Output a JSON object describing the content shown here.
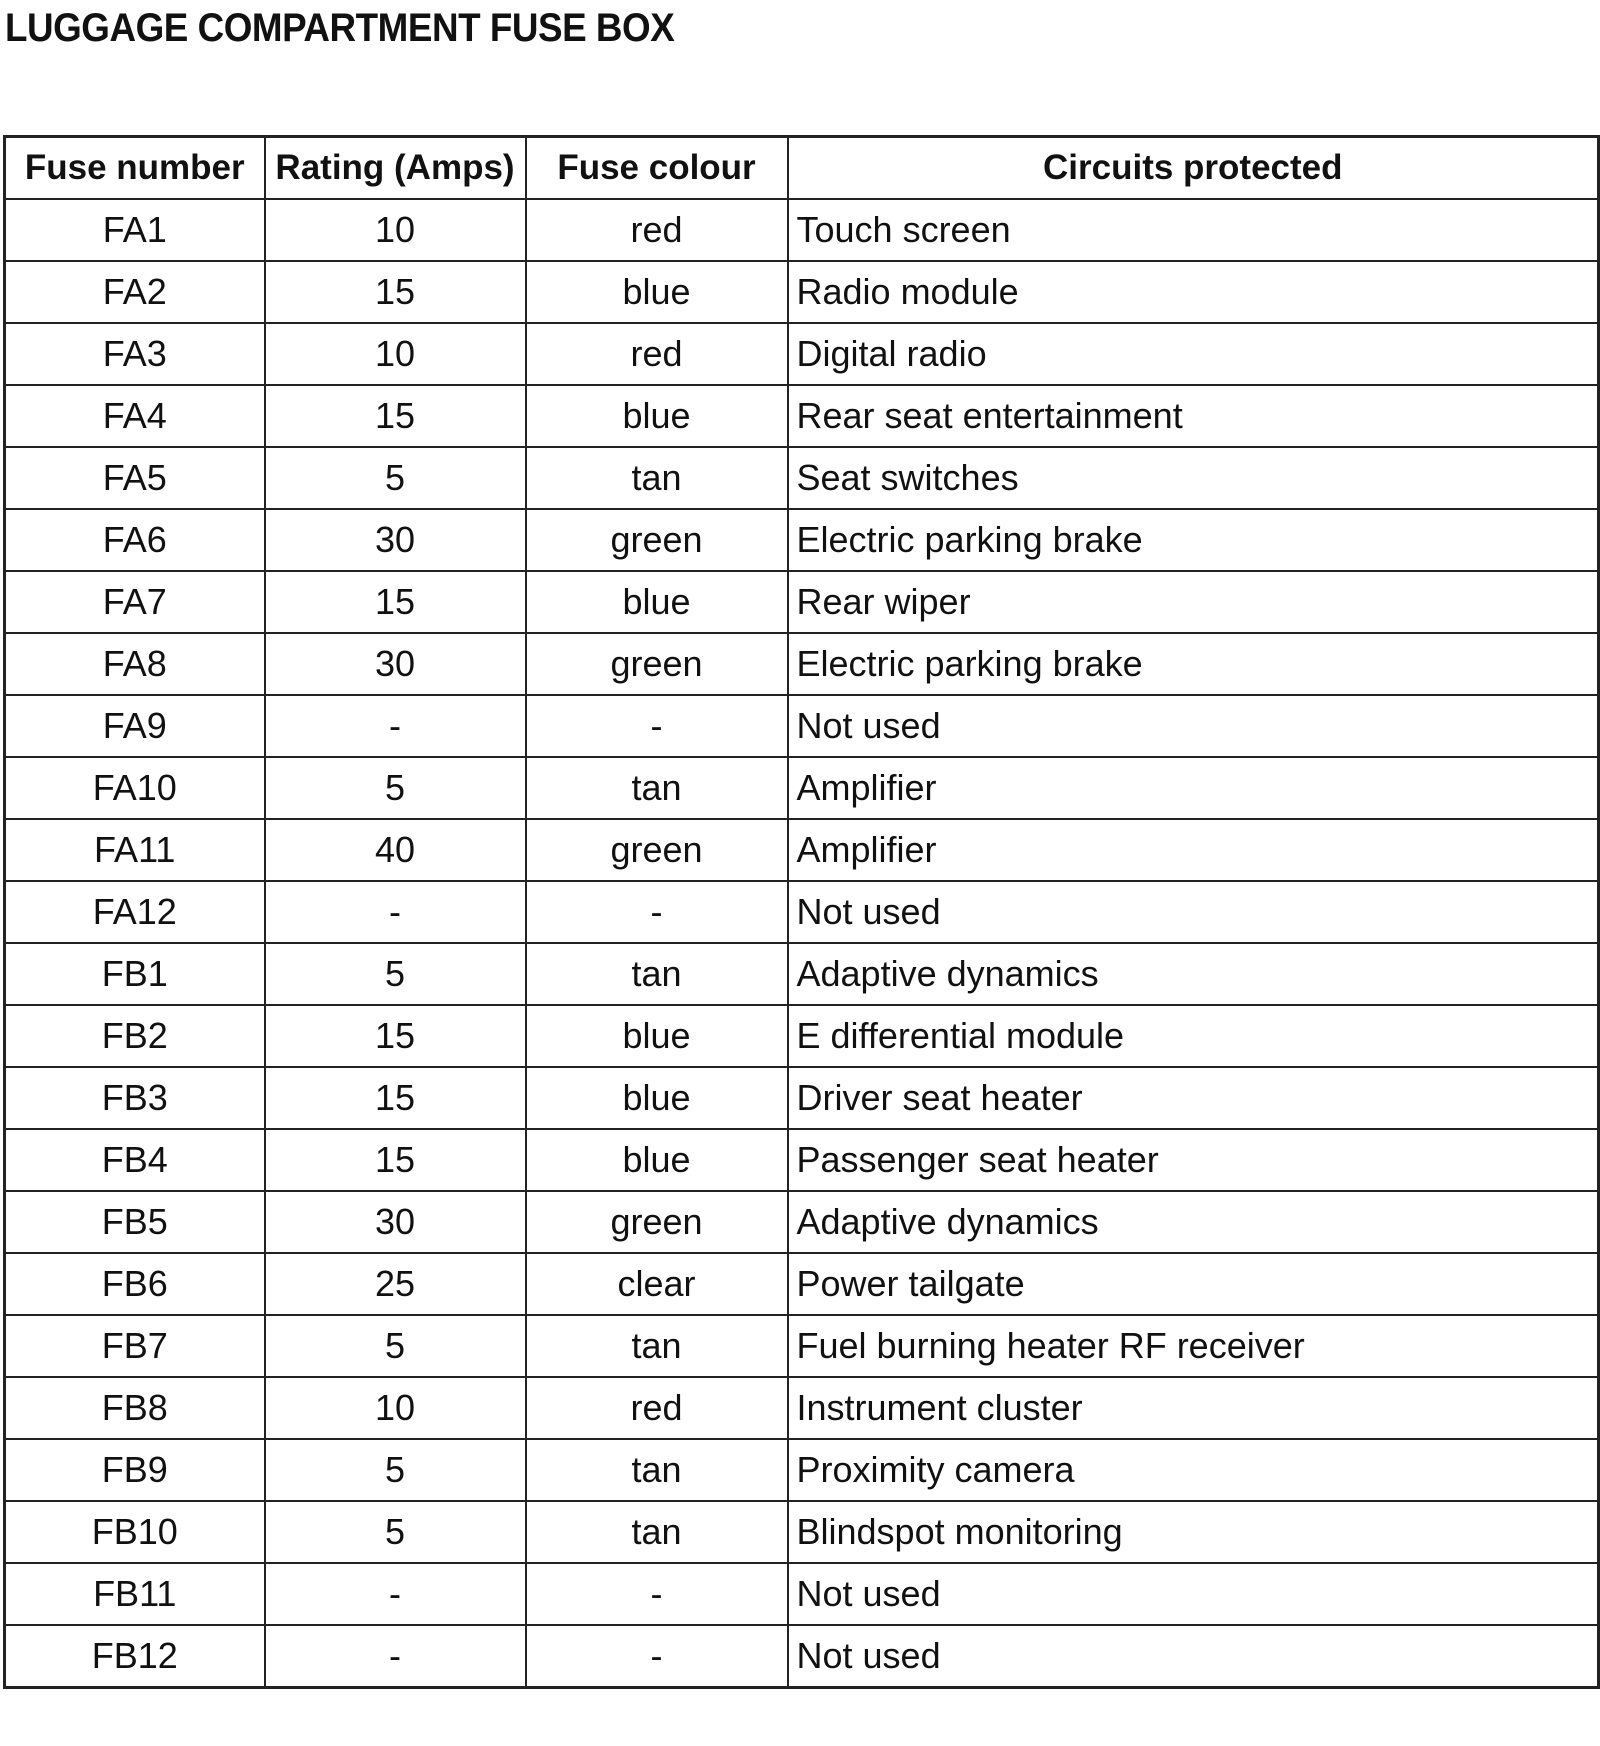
{
  "title": "LUGGAGE COMPARTMENT FUSE BOX",
  "table": {
    "header": [
      "Fuse number",
      "Rating (Amps)",
      "Fuse colour",
      "Circuits protected"
    ],
    "rows": [
      [
        "FA1",
        "10",
        "red",
        "Touch screen"
      ],
      [
        "FA2",
        "15",
        "blue",
        "Radio module"
      ],
      [
        "FA3",
        "10",
        "red",
        "Digital radio"
      ],
      [
        "FA4",
        "15",
        "blue",
        "Rear seat entertainment"
      ],
      [
        "FA5",
        "5",
        "tan",
        "Seat switches"
      ],
      [
        "FA6",
        "30",
        "green",
        "Electric parking brake"
      ],
      [
        "FA7",
        "15",
        "blue",
        "Rear wiper"
      ],
      [
        "FA8",
        "30",
        "green",
        "Electric parking brake"
      ],
      [
        "FA9",
        "-",
        "-",
        "Not used"
      ],
      [
        "FA10",
        "5",
        "tan",
        "Amplifier"
      ],
      [
        "FA11",
        "40",
        "green",
        "Amplifier"
      ],
      [
        "FA12",
        "-",
        "-",
        "Not used"
      ],
      [
        "FB1",
        "5",
        "tan",
        "Adaptive dynamics"
      ],
      [
        "FB2",
        "15",
        "blue",
        "E differential module"
      ],
      [
        "FB3",
        "15",
        "blue",
        "Driver seat heater"
      ],
      [
        "FB4",
        "15",
        "blue",
        "Passenger seat heater"
      ],
      [
        "FB5",
        "30",
        "green",
        "Adaptive dynamics"
      ],
      [
        "FB6",
        "25",
        "clear",
        "Power tailgate"
      ],
      [
        "FB7",
        "5",
        "tan",
        "Fuel burning heater RF receiver"
      ],
      [
        "FB8",
        "10",
        "red",
        "Instrument cluster"
      ],
      [
        "FB9",
        "5",
        "tan",
        "Proximity camera"
      ],
      [
        "FB10",
        "5",
        "tan",
        "Blindspot monitoring"
      ],
      [
        "FB11",
        "-",
        "-",
        "Not used"
      ],
      [
        "FB12",
        "-",
        "-",
        "Not used"
      ]
    ]
  }
}
